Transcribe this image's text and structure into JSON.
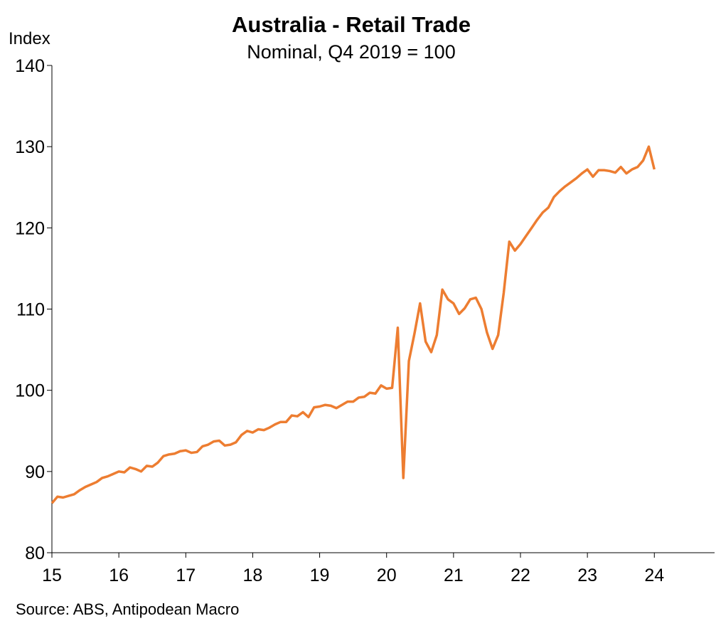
{
  "chart_data": {
    "type": "line",
    "title": "Australia - Retail Trade",
    "subtitle": "Nominal, Q4 2019 = 100",
    "y_label": "Index",
    "source": "Source: ABS, Antipodean Macro",
    "color": "#ed7d31",
    "xlim": [
      15,
      24.9
    ],
    "xticks": [
      15,
      16,
      17,
      18,
      19,
      20,
      21,
      22,
      23,
      24
    ],
    "ylim": [
      80,
      140
    ],
    "yticks": [
      80,
      90,
      100,
      110,
      120,
      130,
      140
    ],
    "x": [
      15,
      15.083,
      15.167,
      15.25,
      15.333,
      15.417,
      15.5,
      15.583,
      15.667,
      15.75,
      15.833,
      15.917,
      16,
      16.083,
      16.167,
      16.25,
      16.333,
      16.417,
      16.5,
      16.583,
      16.667,
      16.75,
      16.833,
      16.917,
      17,
      17.083,
      17.167,
      17.25,
      17.333,
      17.417,
      17.5,
      17.583,
      17.667,
      17.75,
      17.833,
      17.917,
      18,
      18.083,
      18.167,
      18.25,
      18.333,
      18.417,
      18.5,
      18.583,
      18.667,
      18.75,
      18.833,
      18.917,
      19,
      19.083,
      19.167,
      19.25,
      19.333,
      19.417,
      19.5,
      19.583,
      19.667,
      19.75,
      19.833,
      19.917,
      20,
      20.083,
      20.167,
      20.25,
      20.333,
      20.417,
      20.5,
      20.583,
      20.667,
      20.75,
      20.833,
      20.917,
      21,
      21.083,
      21.167,
      21.25,
      21.333,
      21.417,
      21.5,
      21.583,
      21.667,
      21.75,
      21.833,
      21.917,
      22,
      22.083,
      22.167,
      22.25,
      22.333,
      22.417,
      22.5,
      22.583,
      22.667,
      22.75,
      22.833,
      22.917,
      23,
      23.083,
      23.167,
      23.25,
      23.333,
      23.417,
      23.5,
      23.583,
      23.667,
      23.75,
      23.833,
      23.917,
      24
    ],
    "values": [
      86.1,
      86.9,
      86.8,
      87.0,
      87.2,
      87.7,
      88.1,
      88.4,
      88.7,
      89.2,
      89.4,
      89.7,
      90.0,
      89.9,
      90.5,
      90.3,
      90.0,
      90.7,
      90.6,
      91.1,
      91.9,
      92.1,
      92.2,
      92.5,
      92.6,
      92.3,
      92.4,
      93.1,
      93.3,
      93.7,
      93.8,
      93.2,
      93.3,
      93.6,
      94.5,
      95.0,
      94.8,
      95.2,
      95.1,
      95.4,
      95.8,
      96.1,
      96.1,
      96.9,
      96.8,
      97.3,
      96.7,
      97.9,
      98.0,
      98.2,
      98.1,
      97.8,
      98.2,
      98.6,
      98.6,
      99.1,
      99.2,
      99.7,
      99.6,
      100.6,
      100.2,
      100.3,
      107.7,
      89.2,
      103.6,
      107.0,
      110.7,
      106.0,
      104.7,
      106.8,
      112.4,
      111.2,
      110.7,
      109.4,
      110.1,
      111.2,
      111.4,
      110.0,
      107.1,
      105.1,
      106.8,
      112.0,
      118.3,
      117.2,
      118.0,
      119.0,
      120.0,
      121.0,
      121.9,
      122.5,
      123.8,
      124.5,
      125.1,
      125.6,
      126.1,
      126.7,
      127.2,
      126.3,
      127.1,
      127.1,
      127.0,
      126.8,
      127.5,
      126.7,
      127.2,
      127.5,
      128.3,
      130.0,
      127.2
    ]
  }
}
